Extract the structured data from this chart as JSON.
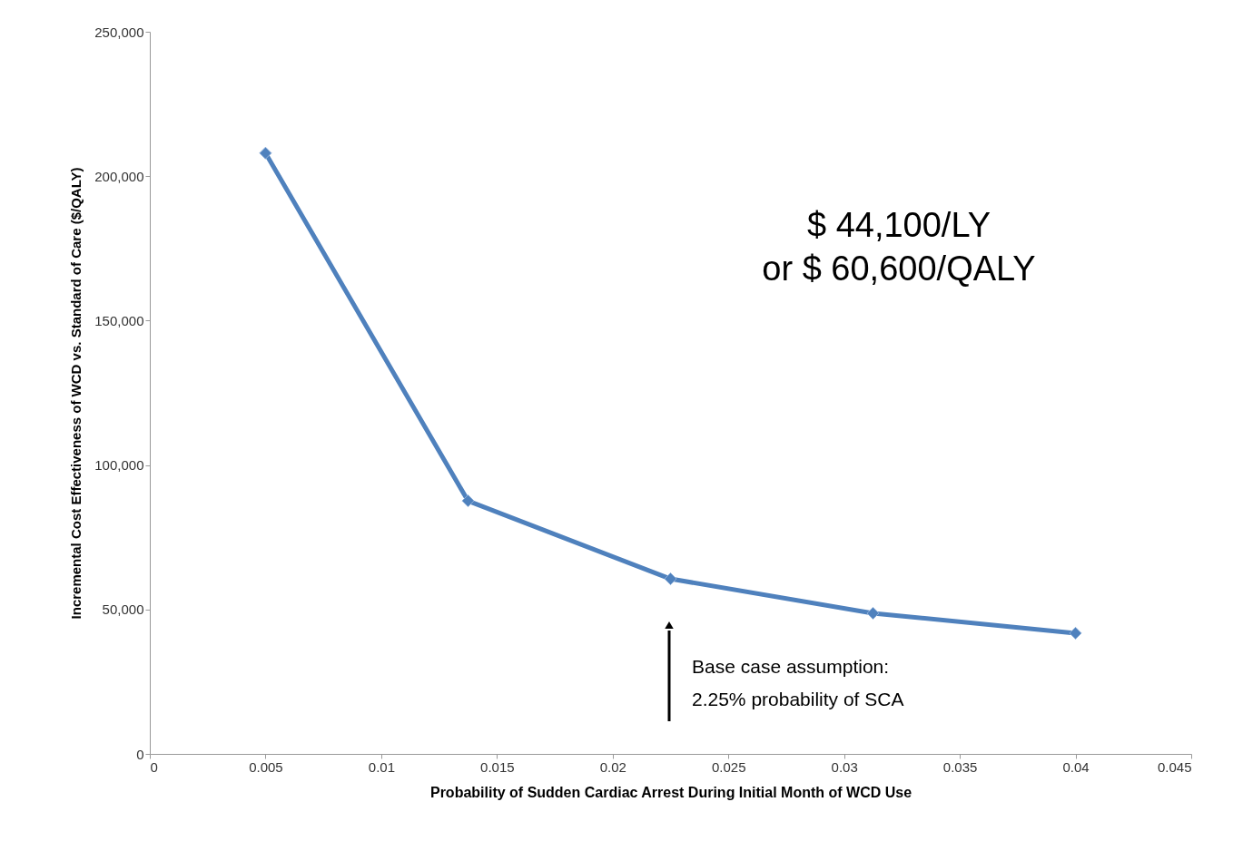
{
  "chart_data": {
    "type": "line",
    "xlabel": "Probability of Sudden Cardiac Arrest During Initial Month of WCD Use",
    "ylabel": "Incremental Cost Effectiveness of WCD vs. Standard of Care ($/QALY)",
    "x": [
      0.005,
      0.01375,
      0.0225,
      0.03125,
      0.04
    ],
    "series": [
      {
        "color": "#4f81bd",
        "values": [
          208000,
          87600,
          60600,
          48700,
          41800
        ]
      }
    ],
    "xlim": [
      0,
      0.045
    ],
    "xticks": [
      0,
      0.005,
      0.01,
      0.015,
      0.02,
      0.025,
      0.03,
      0.035,
      0.04,
      0.045
    ],
    "ylim": [
      0,
      250000
    ],
    "yticks": [
      0,
      {
        "value": 50000,
        "label": "50,000"
      },
      {
        "value": 100000,
        "label": "100,000"
      },
      {
        "value": 150000,
        "label": "150,000"
      },
      {
        "value": 200000,
        "label": "200,000"
      },
      {
        "value": 250000,
        "label": "250,000"
      }
    ],
    "marker": "diamond",
    "grid": false,
    "annotations": [
      "$ 44,100/LY\nor $ 60,600/QALY",
      "Base case assumption:\n2.25% probability of SCA"
    ]
  }
}
